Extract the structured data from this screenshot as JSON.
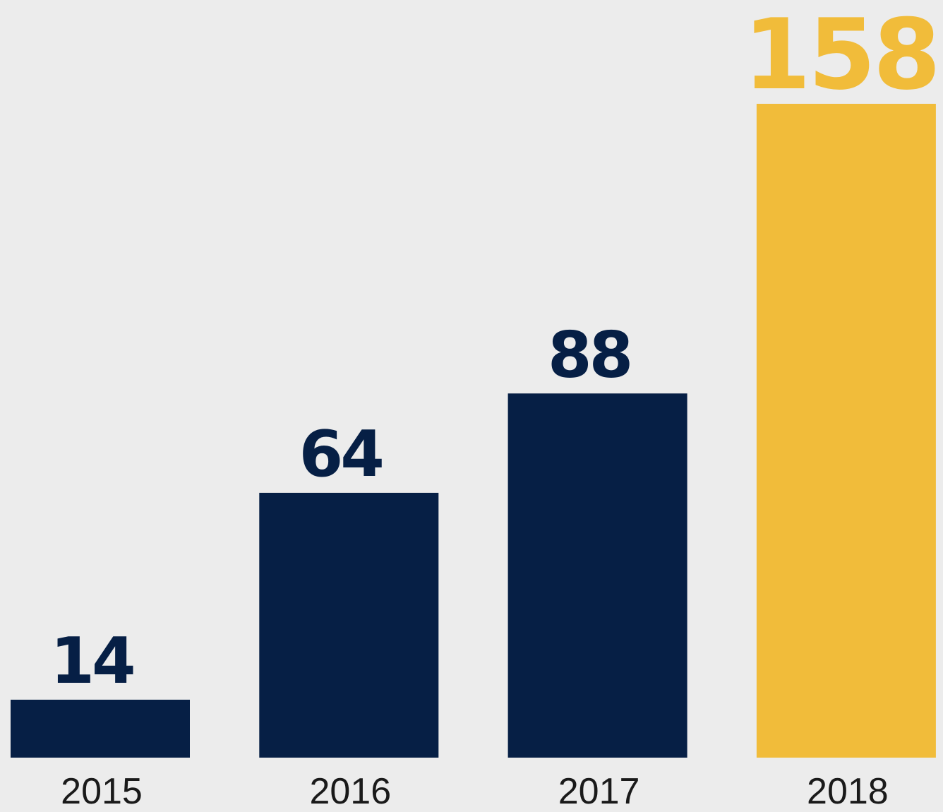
{
  "chart_data": {
    "type": "bar",
    "categories": [
      "2015",
      "2016",
      "2017",
      "2018"
    ],
    "values": [
      14,
      64,
      88,
      158
    ],
    "title": "",
    "xlabel": "",
    "ylabel": "",
    "ylim": [
      0,
      165
    ],
    "grid": false,
    "legend": "none",
    "value_labels": [
      "14",
      "64",
      "88",
      "158"
    ],
    "colors": {
      "default_bar": "#061f45",
      "highlight_bar": "#f1bc3a",
      "background": "#ececec",
      "tick_text": "#1a1a1a"
    },
    "highlight_index": 3
  }
}
